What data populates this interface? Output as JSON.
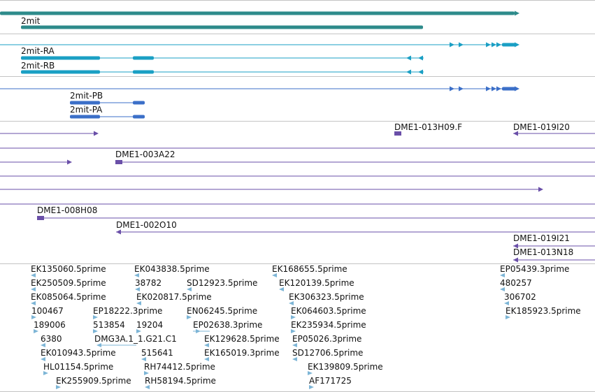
{
  "tracks": {
    "gene": {
      "label": "2mit",
      "color": "#2e8b8b"
    },
    "transcripts_ra_rb": {
      "color": "#1a9fc4",
      "items": [
        {
          "label": "2mit-RA"
        },
        {
          "label": "2mit-RB"
        }
      ]
    },
    "proteins": {
      "color": "#3b6fc8",
      "items": [
        {
          "label": "2mit-PB"
        },
        {
          "label": "2mit-PA"
        }
      ]
    },
    "clones": {
      "color": "#6a4fa8",
      "items": [
        {
          "label": "DME1-013H09.F"
        },
        {
          "label": "DME1-019I20"
        },
        {
          "label": "DME1-003A22"
        },
        {
          "label": "DME1-008H08"
        },
        {
          "label": "DME1-002O10"
        },
        {
          "label": "DME1-019I21"
        },
        {
          "label": "DME1-013N18"
        }
      ]
    },
    "ests": {
      "color": "#7db5d6",
      "items": [
        {
          "label": "EK135060.5prime"
        },
        {
          "label": "EK250509.5prime"
        },
        {
          "label": "EK085064.5prime"
        },
        {
          "label": "100467"
        },
        {
          "label": "189006"
        },
        {
          "label": "6380"
        },
        {
          "label": "EK010943.5prime"
        },
        {
          "label": "HL01154.5prime"
        },
        {
          "label": "EK255909.5prime"
        },
        {
          "label": "EP18222.3prime"
        },
        {
          "label": "513854"
        },
        {
          "label": "DMG3A.1_1.G21.C1"
        },
        {
          "label": "EK043838.5prime"
        },
        {
          "label": "38782"
        },
        {
          "label": "EK020817.5prime"
        },
        {
          "label": "19204"
        },
        {
          "label": "515641"
        },
        {
          "label": "RH74412.5prime"
        },
        {
          "label": "RH58194.5prime"
        },
        {
          "label": "SD12923.5prime"
        },
        {
          "label": "EN06245.5prime"
        },
        {
          "label": "EP02638.3prime"
        },
        {
          "label": "EK129628.5prime"
        },
        {
          "label": "EK165019.3prime"
        },
        {
          "label": "EK168655.5prime"
        },
        {
          "label": "EK120139.5prime"
        },
        {
          "label": "EK306323.5prime"
        },
        {
          "label": "EK064603.5prime"
        },
        {
          "label": "EK235934.5prime"
        },
        {
          "label": "EP05026.3prime"
        },
        {
          "label": "SD12706.5prime"
        },
        {
          "label": "EK139809.5prime"
        },
        {
          "label": "AF171725"
        },
        {
          "label": "EP05439.3prime"
        },
        {
          "label": "480257"
        },
        {
          "label": "306702"
        },
        {
          "label": "EK185923.5prime"
        }
      ]
    }
  }
}
